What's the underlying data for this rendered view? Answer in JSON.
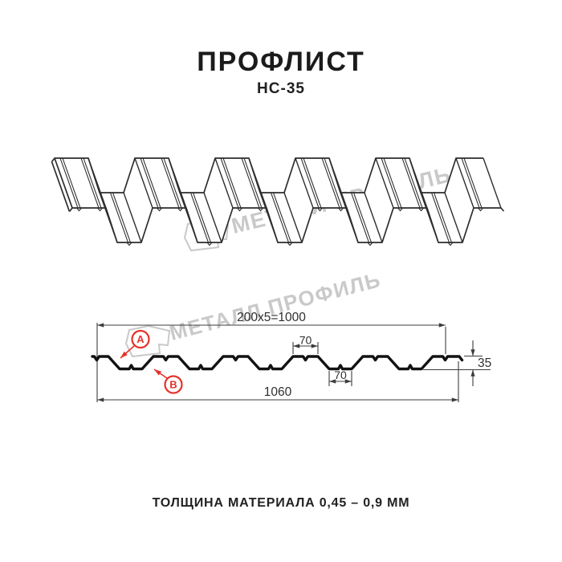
{
  "header": {
    "title": "ПРОФЛИСТ",
    "subtitle": "НС-35"
  },
  "watermark": {
    "text": "МЕТАЛЛ ПРОФИЛЬ",
    "color": "#c9c9c9",
    "logo_icon": "metal-profile-logo"
  },
  "section_drawing": {
    "dim_module_top": "200x5=1000",
    "dim_top_flange": "70",
    "dim_bottom_flange": "70",
    "dim_height": "35",
    "dim_overall_width": "1060",
    "marker_a": "А",
    "marker_b": "В",
    "marker_color": "#e5332a",
    "line_color": "#3c3c3c",
    "profile_color": "#121212"
  },
  "footer": {
    "caption": "ТОЛЩИНА МАТЕРИАЛА 0,45 – 0,9 ММ"
  }
}
